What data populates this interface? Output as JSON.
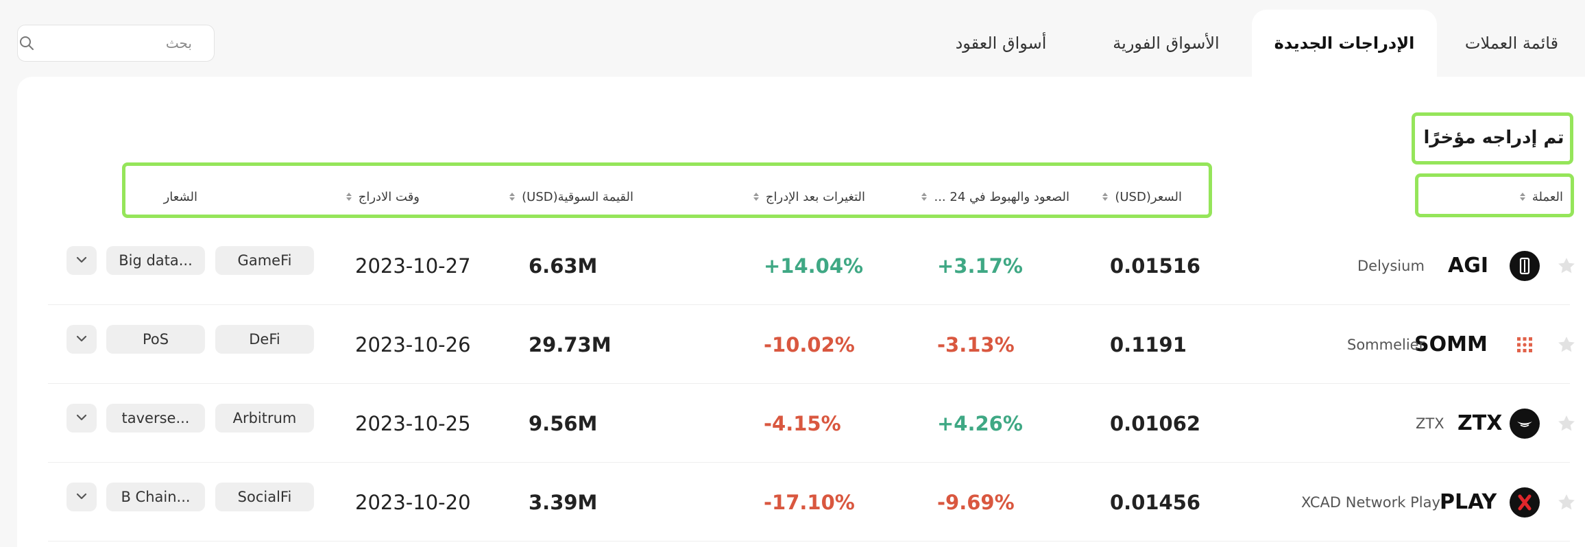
{
  "search": {
    "placeholder": "بحث"
  },
  "tabs": [
    {
      "label": "قائمة العملات",
      "active": false
    },
    {
      "label": "الإدراجات الجديدة",
      "active": true
    },
    {
      "label": "الأسواق الفورية",
      "active": false
    },
    {
      "label": "أسواق العقود",
      "active": false
    }
  ],
  "section_title": "تم إدراجه مؤخرًا",
  "columns": {
    "coin": "العملة",
    "price": "السعر(USD)",
    "change24h": "الصعود والهبوط في 24 ...",
    "change_since": "التغيرات بعد الإدراج",
    "market_cap": "القيمة السوقية(USD)",
    "listing_time": "وقت الادراج",
    "tags": "الشعار"
  },
  "rows": [
    {
      "symbol": "AGI",
      "name": "Delysium",
      "logo": "delysium-logo",
      "price": "0.01516",
      "change24h": "+3.17%",
      "change24h_dir": "up",
      "change_since": "+14.04%",
      "change_since_dir": "up",
      "market_cap": "6.63M",
      "date": "2023-10-27",
      "tag1": "GameFi",
      "tag2": "Big data..."
    },
    {
      "symbol": "SOMM",
      "name": "Sommelier",
      "logo": "sommelier-logo",
      "price": "0.1191",
      "change24h": "-3.13%",
      "change24h_dir": "down",
      "change_since": "-10.02%",
      "change_since_dir": "down",
      "market_cap": "29.73M",
      "date": "2023-10-26",
      "tag1": "DeFi",
      "tag2": "PoS"
    },
    {
      "symbol": "ZTX",
      "name": "ZTX",
      "logo": "ztx-logo",
      "price": "0.01062",
      "change24h": "+4.26%",
      "change24h_dir": "up",
      "change_since": "-4.15%",
      "change_since_dir": "down",
      "market_cap": "9.56M",
      "date": "2023-10-25",
      "tag1": "Arbitrum",
      "tag2": "taverse..."
    },
    {
      "symbol": "PLAY",
      "name": "XCAD Network Play",
      "logo": "xcad-logo",
      "price": "0.01456",
      "change24h": "-9.69%",
      "change24h_dir": "down",
      "change_since": "-17.10%",
      "change_since_dir": "down",
      "market_cap": "3.39M",
      "date": "2023-10-20",
      "tag1": "SocialFi",
      "tag2": "B Chain..."
    }
  ],
  "colors": {
    "highlight": "#95e55a",
    "positive": "#3fa884",
    "negative": "#d9573f"
  }
}
